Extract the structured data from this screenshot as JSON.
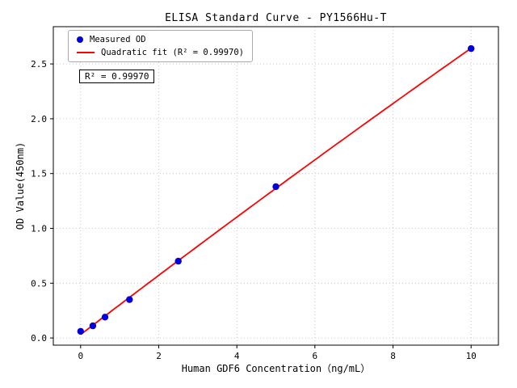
{
  "chart_data": {
    "type": "scatter",
    "title": "ELISA Standard Curve - PY1566Hu-T",
    "xlabel": "Human GDF6 Concentration（ng/mL）",
    "ylabel": "OD Value(450nm)",
    "legend": [
      "Measured OD",
      "Quadratic fit (R² = 0.99970)"
    ],
    "annotation": "R² = 0.99970",
    "r_squared": "0.99970",
    "fit_type": "quadratic",
    "points": {
      "x": [
        0,
        0.3125,
        0.625,
        1.25,
        2.5,
        5,
        10
      ],
      "y": [
        0.06,
        0.11,
        0.19,
        0.35,
        0.7,
        1.38,
        2.64
      ]
    },
    "xticks": [
      0,
      2,
      4,
      6,
      8,
      10
    ],
    "xtick_labels": [
      "0",
      "2",
      "4",
      "6",
      "8",
      "10"
    ],
    "yticks": [
      0,
      0.5,
      1,
      1.5,
      2,
      2.5
    ],
    "ytick_labels": [
      "0.0",
      "0.5",
      "1.0",
      "1.5",
      "2.0",
      "2.5"
    ],
    "xlim": [
      -0.7,
      10.7
    ],
    "ylim": [
      -0.066,
      2.84
    ],
    "grid": true,
    "legend_position": "upper left",
    "colors": {
      "point": "#0000dd",
      "line": "#ff0000",
      "grid": "#bbbbbb"
    }
  }
}
